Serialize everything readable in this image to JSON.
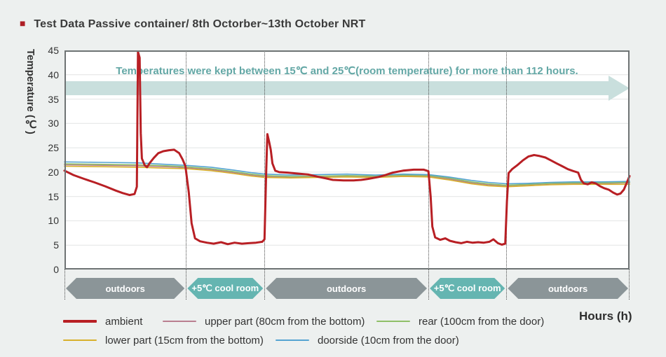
{
  "title": {
    "bullet": "■",
    "text": "Test Data  Passive container/ 8th Octorber~13th October NRT"
  },
  "annotation": {
    "text": "Temperatures were kept between 15℃ and 25℃(room temperature) for more than 112 hours."
  },
  "y_axis": {
    "label": "Temperature (℃)",
    "ticks": [
      45,
      40,
      35,
      30,
      25,
      20,
      15,
      10,
      5,
      0
    ],
    "min": 0,
    "max": 45
  },
  "x_axis": {
    "label": "Hours (h)"
  },
  "colors": {
    "title_bullet": "#ae1e24",
    "annotation": "#63a7a5",
    "arrow": "#c9dfdd",
    "band_outdoors": "#8b9598",
    "band_cool": "#65b5b1",
    "ambient": "#b81f24",
    "upper": "#b97f90",
    "rear": "#8fbf68",
    "lower": "#d8b02b",
    "doorside": "#55a3d1",
    "grid": "#e2e4e4",
    "frame": "#6e7374"
  },
  "segments": [
    {
      "label": "outdoors",
      "start": 0,
      "end": 21.5,
      "color": "band_outdoors"
    },
    {
      "label": "+5℃ cool room",
      "start": 21.5,
      "end": 35.4,
      "color": "band_cool"
    },
    {
      "label": "outdoors",
      "start": 35.4,
      "end": 64.4,
      "color": "band_outdoors"
    },
    {
      "label": "+5℃ cool room",
      "start": 64.4,
      "end": 78.2,
      "color": "band_cool"
    },
    {
      "label": "outdoors",
      "start": 78.2,
      "end": 100,
      "color": "band_outdoors"
    }
  ],
  "chart_data": {
    "type": "line",
    "title": "Test Data  Passive container/ 8th Octorber~13th October NRT",
    "xlabel": "Hours (h)",
    "ylabel": "Temperature (℃)",
    "ylim": [
      0,
      45
    ],
    "x_unit": "percent_of_timeline",
    "grid": "horizontal-only",
    "legend_position": "bottom",
    "annotations": [
      "Temperatures were kept between 15℃ and 25℃(room temperature) for more than 112 hours."
    ],
    "series": [
      {
        "name": "ambient",
        "color": "ambient",
        "width": 3,
        "points": [
          [
            0,
            20.3
          ],
          [
            1.6,
            19.4
          ],
          [
            3.5,
            18.6
          ],
          [
            5.3,
            17.9
          ],
          [
            7.2,
            17.1
          ],
          [
            9.1,
            16.2
          ],
          [
            10.3,
            15.7
          ],
          [
            11.5,
            15.3
          ],
          [
            12.4,
            15.5
          ],
          [
            12.8,
            17
          ],
          [
            13,
            44.7
          ],
          [
            13.3,
            43.5
          ],
          [
            13.5,
            28
          ],
          [
            13.7,
            22.8
          ],
          [
            14.2,
            21.4
          ],
          [
            14.6,
            21
          ],
          [
            15.1,
            21.9
          ],
          [
            15.8,
            22.9
          ],
          [
            16.6,
            23.9
          ],
          [
            17.5,
            24.3
          ],
          [
            18.5,
            24.5
          ],
          [
            19.4,
            24.6
          ],
          [
            20.3,
            23.9
          ],
          [
            20.9,
            22.6
          ],
          [
            21.4,
            21.2
          ],
          [
            22,
            15.8
          ],
          [
            22.5,
            9.5
          ],
          [
            23.1,
            6.4
          ],
          [
            24,
            5.8
          ],
          [
            25.2,
            5.5
          ],
          [
            26.4,
            5.3
          ],
          [
            27.7,
            5.6
          ],
          [
            28.9,
            5.2
          ],
          [
            30.1,
            5.5
          ],
          [
            31.4,
            5.3
          ],
          [
            32.6,
            5.4
          ],
          [
            33.9,
            5.5
          ],
          [
            35,
            5.7
          ],
          [
            35.4,
            6.2
          ],
          [
            35.7,
            20
          ],
          [
            35.9,
            27.8
          ],
          [
            36.2,
            26.3
          ],
          [
            36.5,
            24.6
          ],
          [
            36.8,
            21.8
          ],
          [
            37.3,
            20.3
          ],
          [
            38,
            20
          ],
          [
            39.5,
            19.9
          ],
          [
            41.3,
            19.7
          ],
          [
            43.2,
            19.5
          ],
          [
            45,
            19
          ],
          [
            46.3,
            18.7
          ],
          [
            47.5,
            18.4
          ],
          [
            49.4,
            18.3
          ],
          [
            51.2,
            18.3
          ],
          [
            52.5,
            18.4
          ],
          [
            53.7,
            18.6
          ],
          [
            55.6,
            19
          ],
          [
            56.8,
            19.4
          ],
          [
            58.1,
            19.9
          ],
          [
            59.9,
            20.3
          ],
          [
            61.8,
            20.5
          ],
          [
            63.6,
            20.5
          ],
          [
            64.4,
            20.2
          ],
          [
            64.8,
            15
          ],
          [
            65.1,
            8.8
          ],
          [
            65.6,
            6.6
          ],
          [
            66.5,
            6.1
          ],
          [
            67.4,
            6.4
          ],
          [
            68.2,
            5.9
          ],
          [
            69.2,
            5.6
          ],
          [
            70.2,
            5.4
          ],
          [
            71.2,
            5.7
          ],
          [
            72.2,
            5.5
          ],
          [
            73.2,
            5.6
          ],
          [
            74.2,
            5.5
          ],
          [
            75.2,
            5.7
          ],
          [
            75.9,
            6.2
          ],
          [
            76.7,
            5.4
          ],
          [
            77.4,
            5.1
          ],
          [
            78,
            5.3
          ],
          [
            78.3,
            14
          ],
          [
            78.6,
            19.8
          ],
          [
            79.2,
            20.6
          ],
          [
            80.1,
            21.4
          ],
          [
            81.1,
            22.4
          ],
          [
            82.1,
            23.2
          ],
          [
            83.1,
            23.5
          ],
          [
            84.1,
            23.3
          ],
          [
            85.1,
            23
          ],
          [
            86.1,
            22.4
          ],
          [
            87.1,
            21.8
          ],
          [
            88.1,
            21.2
          ],
          [
            89.1,
            20.6
          ],
          [
            90.1,
            20.2
          ],
          [
            90.9,
            19.9
          ],
          [
            91.4,
            18.4
          ],
          [
            91.9,
            17.7
          ],
          [
            92.6,
            17.5
          ],
          [
            93.3,
            17.9
          ],
          [
            94,
            17.7
          ],
          [
            94.8,
            17.1
          ],
          [
            95.5,
            16.7
          ],
          [
            96.3,
            16.4
          ],
          [
            97.1,
            15.8
          ],
          [
            97.8,
            15.4
          ],
          [
            98.4,
            15.6
          ],
          [
            99,
            16.4
          ],
          [
            99.5,
            17.8
          ],
          [
            100,
            19.2
          ]
        ]
      },
      {
        "name": "upper part (80cm from the bottom)",
        "color": "upper",
        "width": 1.6,
        "points": [
          [
            0,
            21.5
          ],
          [
            7,
            21.4
          ],
          [
            13,
            21.3
          ],
          [
            18,
            21.1
          ],
          [
            21.5,
            20.9
          ],
          [
            26,
            20.5
          ],
          [
            30,
            19.9
          ],
          [
            33,
            19.4
          ],
          [
            35.4,
            19.1
          ],
          [
            40,
            19
          ],
          [
            45,
            19
          ],
          [
            50,
            19.1
          ],
          [
            55,
            19
          ],
          [
            60,
            19.2
          ],
          [
            64.4,
            19.1
          ],
          [
            68,
            18.6
          ],
          [
            72,
            17.8
          ],
          [
            75,
            17.4
          ],
          [
            78.2,
            17.2
          ],
          [
            82,
            17.4
          ],
          [
            86,
            17.6
          ],
          [
            90,
            17.7
          ],
          [
            95,
            17.7
          ],
          [
            100,
            17.8
          ]
        ]
      },
      {
        "name": "rear  (100cm from the door)",
        "color": "rear",
        "width": 1.6,
        "points": [
          [
            0,
            21.7
          ],
          [
            7,
            21.6
          ],
          [
            13,
            21.5
          ],
          [
            18,
            21.3
          ],
          [
            21.5,
            21.1
          ],
          [
            26,
            20.7
          ],
          [
            30,
            20.1
          ],
          [
            33,
            19.6
          ],
          [
            35.4,
            19.3
          ],
          [
            40,
            19.1
          ],
          [
            45,
            19.2
          ],
          [
            50,
            19.3
          ],
          [
            55,
            19.2
          ],
          [
            60,
            19.4
          ],
          [
            64.4,
            19.3
          ],
          [
            68,
            18.8
          ],
          [
            72,
            18
          ],
          [
            75,
            17.6
          ],
          [
            78.2,
            17.3
          ],
          [
            82,
            17.5
          ],
          [
            86,
            17.7
          ],
          [
            90,
            17.8
          ],
          [
            95,
            17.8
          ],
          [
            100,
            17.9
          ]
        ]
      },
      {
        "name": "lower part (15cm from the bottom)",
        "color": "lower",
        "width": 1.6,
        "points": [
          [
            0,
            21.2
          ],
          [
            7,
            21.1
          ],
          [
            13,
            21
          ],
          [
            18,
            20.8
          ],
          [
            21.5,
            20.7
          ],
          [
            26,
            20.3
          ],
          [
            30,
            19.7
          ],
          [
            33,
            19.2
          ],
          [
            35.4,
            18.9
          ],
          [
            40,
            18.8
          ],
          [
            45,
            18.9
          ],
          [
            50,
            19
          ],
          [
            55,
            18.9
          ],
          [
            60,
            19.1
          ],
          [
            64.4,
            19
          ],
          [
            68,
            18.4
          ],
          [
            72,
            17.6
          ],
          [
            75,
            17.2
          ],
          [
            78.2,
            17
          ],
          [
            82,
            17.2
          ],
          [
            86,
            17.4
          ],
          [
            90,
            17.5
          ],
          [
            95,
            17.5
          ],
          [
            100,
            17.5
          ]
        ]
      },
      {
        "name": "doorside (10cm from the door)",
        "color": "doorside",
        "width": 1.6,
        "points": [
          [
            0,
            22.1
          ],
          [
            7,
            22
          ],
          [
            13,
            21.9
          ],
          [
            18,
            21.6
          ],
          [
            21.5,
            21.4
          ],
          [
            26,
            21
          ],
          [
            30,
            20.4
          ],
          [
            33,
            19.9
          ],
          [
            35.4,
            19.6
          ],
          [
            40,
            19.4
          ],
          [
            45,
            19.5
          ],
          [
            50,
            19.6
          ],
          [
            55,
            19.4
          ],
          [
            60,
            19.6
          ],
          [
            64.4,
            19.5
          ],
          [
            68,
            19
          ],
          [
            72,
            18.3
          ],
          [
            75,
            17.9
          ],
          [
            78.2,
            17.6
          ],
          [
            82,
            17.7
          ],
          [
            86,
            17.9
          ],
          [
            90,
            18
          ],
          [
            95,
            18
          ],
          [
            100,
            18.1
          ]
        ]
      }
    ]
  }
}
